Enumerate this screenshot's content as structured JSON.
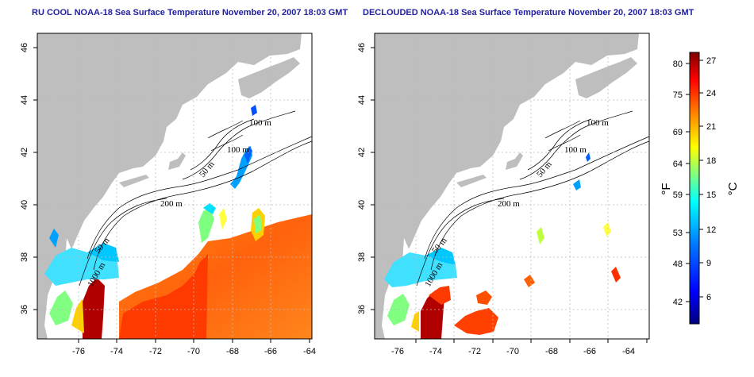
{
  "panels": [
    {
      "title": "RU COOL NOAA-18 Sea Surface Temperature November 20, 2007 18:03 GMT",
      "contour_labels": [
        "100 m",
        "100 m",
        "50 m",
        "200 m",
        "50 m",
        "1000 m"
      ]
    },
    {
      "title": "DECLOUDED NOAA-18 Sea Surface Temperature November 20, 2007 18:03 GMT",
      "contour_labels": [
        "100 m",
        "100 m",
        "50 m",
        "200 m",
        "50 m",
        "1000 m"
      ]
    }
  ],
  "axes": {
    "x_ticks": [
      "-76",
      "-74",
      "-72",
      "-70",
      "-68",
      "-66",
      "-64"
    ],
    "y_ticks": [
      "36",
      "38",
      "40",
      "42",
      "44",
      "46"
    ]
  },
  "colorbar": {
    "fahrenheit_ticks": [
      "80",
      "75",
      "69",
      "64",
      "59",
      "53",
      "48",
      "42"
    ],
    "celsius_ticks": [
      "27",
      "24",
      "21",
      "18",
      "15",
      "12",
      "9",
      "6"
    ],
    "fahrenheit_unit": "°F",
    "celsius_unit": "°C",
    "colors": [
      "#00007f",
      "#0000ff",
      "#007fff",
      "#00ffff",
      "#7fff7f",
      "#ffff00",
      "#ff7f00",
      "#ff0000",
      "#7f0000"
    ]
  },
  "colors": {
    "land": "#bebebe",
    "title": "#1f1f9f"
  }
}
